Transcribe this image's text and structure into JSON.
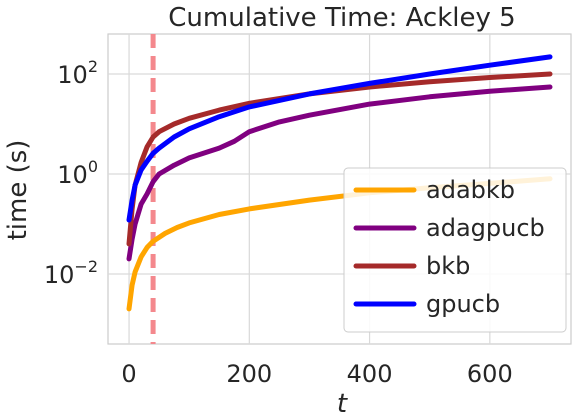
{
  "chart_data": {
    "type": "line",
    "title": "Cumulative Time: Ackley 5",
    "xlabel": "t",
    "ylabel": "time (s)",
    "xlim": [
      -35,
      735
    ],
    "ylim_log10": [
      -3.4,
      2.8
    ],
    "yscale": "log",
    "grid": true,
    "legend_position": "bottom-right",
    "x_ticks": [
      {
        "value": 0,
        "label": "0"
      },
      {
        "value": 200,
        "label": "200"
      },
      {
        "value": 400,
        "label": "400"
      },
      {
        "value": 600,
        "label": "600"
      }
    ],
    "y_ticks": [
      {
        "log10": -2,
        "base": "10",
        "exp": "−2"
      },
      {
        "log10": 0,
        "base": "10",
        "exp": "0"
      },
      {
        "log10": 2,
        "base": "10",
        "exp": "2"
      }
    ],
    "vline": {
      "x": 40,
      "color": "#f4888d",
      "style": "dashed"
    },
    "series": [
      {
        "name": "adabkb",
        "color": "#ffa500",
        "points": [
          [
            0,
            0.002
          ],
          [
            5,
            0.006
          ],
          [
            10,
            0.011
          ],
          [
            20,
            0.022
          ],
          [
            30,
            0.034
          ],
          [
            40,
            0.045
          ],
          [
            60,
            0.065
          ],
          [
            80,
            0.085
          ],
          [
            100,
            0.105
          ],
          [
            150,
            0.155
          ],
          [
            200,
            0.2
          ],
          [
            300,
            0.3
          ],
          [
            400,
            0.42
          ],
          [
            500,
            0.53
          ],
          [
            600,
            0.65
          ],
          [
            700,
            0.8
          ]
        ]
      },
      {
        "name": "adagpucb",
        "color": "#800080",
        "points": [
          [
            0,
            0.02
          ],
          [
            5,
            0.05
          ],
          [
            10,
            0.1
          ],
          [
            20,
            0.25
          ],
          [
            30,
            0.4
          ],
          [
            40,
            0.7
          ],
          [
            50,
            1.0
          ],
          [
            75,
            1.5
          ],
          [
            100,
            2.1
          ],
          [
            150,
            3.3
          ],
          [
            175,
            4.5
          ],
          [
            200,
            7.0
          ],
          [
            250,
            11.0
          ],
          [
            300,
            15.0
          ],
          [
            400,
            25.0
          ],
          [
            500,
            35.0
          ],
          [
            600,
            45.0
          ],
          [
            700,
            55.0
          ]
        ]
      },
      {
        "name": "bkb",
        "color": "#a52a2a",
        "points": [
          [
            0,
            0.04
          ],
          [
            5,
            0.2
          ],
          [
            10,
            0.6
          ],
          [
            20,
            1.7
          ],
          [
            30,
            3.5
          ],
          [
            40,
            5.5
          ],
          [
            50,
            7.0
          ],
          [
            75,
            10.0
          ],
          [
            100,
            13.0
          ],
          [
            150,
            19.0
          ],
          [
            200,
            26.0
          ],
          [
            300,
            40.0
          ],
          [
            400,
            55.0
          ],
          [
            500,
            70.0
          ],
          [
            600,
            85.0
          ],
          [
            700,
            100.0
          ]
        ]
      },
      {
        "name": "gpucb",
        "color": "#0000ff",
        "points": [
          [
            0,
            0.12
          ],
          [
            5,
            0.3
          ],
          [
            10,
            0.6
          ],
          [
            20,
            1.2
          ],
          [
            30,
            1.8
          ],
          [
            40,
            2.6
          ],
          [
            50,
            3.3
          ],
          [
            75,
            5.5
          ],
          [
            100,
            8.0
          ],
          [
            150,
            14.0
          ],
          [
            200,
            22.0
          ],
          [
            300,
            40.0
          ],
          [
            400,
            65.0
          ],
          [
            500,
            100.0
          ],
          [
            600,
            150.0
          ],
          [
            700,
            220.0
          ]
        ]
      }
    ]
  }
}
